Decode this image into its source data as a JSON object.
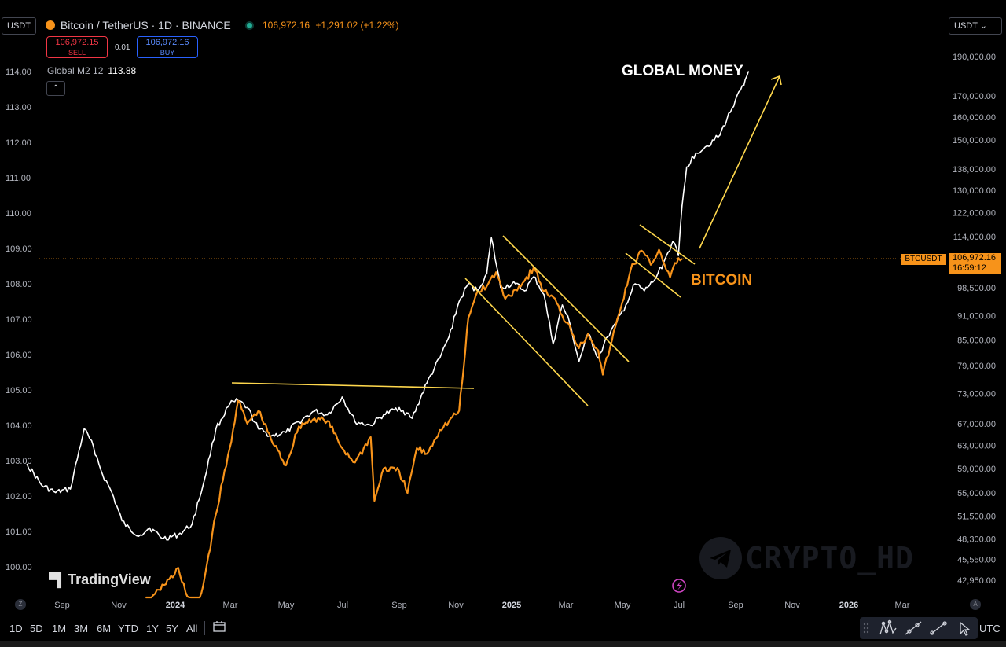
{
  "header": {
    "currency_left": "USDT",
    "currency_right": "USDT ⌄",
    "symbol_title": "Bitcoin / TetherUS · 1D · BINANCE",
    "last_price": "106,972.16",
    "change": "+1,291.02 (+1.22%)",
    "sell_price": "106,972.15",
    "sell_label": "SELL",
    "buy_price": "106,972.16",
    "buy_label": "BUY",
    "spread": "0.01",
    "indicator_name": "Global M2 12",
    "indicator_value": "113.88",
    "collapse_glyph": "⌃"
  },
  "price_tag": {
    "label": "BTCUSDT",
    "price": "106,972.16",
    "countdown": "16:59:12"
  },
  "branding": {
    "tradingview": "TradingView",
    "watermark": "CRYPTO_HD"
  },
  "bottom_toolbar": {
    "timeframes": [
      "1D",
      "5D",
      "1M",
      "3M",
      "6M",
      "YTD",
      "1Y",
      "5Y",
      "All"
    ],
    "timezone": "UTC",
    "z_button": "Z",
    "a_button": "A"
  },
  "colors": {
    "background": "#000000",
    "bitcoin": "#f7931a",
    "global_money": "#ffffff",
    "annotation": "#ffd84d"
  },
  "chart_data": {
    "type": "line",
    "annotations": [
      "GLOBAL MONEY",
      "BITCOIN"
    ],
    "left_axis": {
      "ticks": [
        "100.00",
        "101.00",
        "102.00",
        "103.00",
        "104.00",
        "105.00",
        "106.00",
        "107.00",
        "108.00",
        "109.00",
        "110.00",
        "111.00",
        "112.00",
        "113.00",
        "114.00"
      ],
      "range": [
        99.6,
        114.9
      ]
    },
    "right_axis": {
      "scale": "log",
      "ticks": [
        "42,950.00",
        "45,550.00",
        "48,300.00",
        "51,500.00",
        "55,000.00",
        "59,000.00",
        "63,000.00",
        "67,000.00",
        "73,000.00",
        "79,000.00",
        "85,000.00",
        "91,000.00",
        "98,500.00",
        "106,000.00",
        "114,000.00",
        "122,000.00",
        "130,000.00",
        "138,000.00",
        "150,000.00",
        "160,000.00",
        "170,000.00",
        "190,000.00"
      ]
    },
    "x_axis": {
      "ticks": [
        "Sep",
        "Nov",
        "2024",
        "Mar",
        "May",
        "Jul",
        "Sep",
        "Nov",
        "2025",
        "Mar",
        "May",
        "Jul",
        "Sep",
        "Nov",
        "2026",
        "Mar"
      ]
    },
    "series": [
      {
        "name": "Global M2 12",
        "color": "#ffffff",
        "axis": "left",
        "x": [
          "2023-07-25",
          "2023-08-10",
          "2023-08-25",
          "2023-09-10",
          "2023-09-25",
          "2023-10-05",
          "2023-10-15",
          "2023-10-25",
          "2023-11-05",
          "2023-11-15",
          "2023-11-25",
          "2023-12-05",
          "2023-12-20",
          "2024-01-05",
          "2024-01-20",
          "2024-02-01",
          "2024-02-15",
          "2024-03-01",
          "2024-03-10",
          "2024-03-20",
          "2024-04-01",
          "2024-04-15",
          "2024-05-01",
          "2024-05-15",
          "2024-06-01",
          "2024-06-15",
          "2024-07-01",
          "2024-07-15",
          "2024-08-01",
          "2024-08-15",
          "2024-09-01",
          "2024-09-15",
          "2024-10-01",
          "2024-10-15",
          "2024-10-25",
          "2024-11-05",
          "2024-11-15",
          "2024-11-25",
          "2024-12-05",
          "2024-12-10",
          "2024-12-20",
          "2025-01-05",
          "2025-01-15",
          "2025-01-25",
          "2025-02-05",
          "2025-02-15",
          "2025-02-25",
          "2025-03-05",
          "2025-03-15",
          "2025-03-25",
          "2025-04-05",
          "2025-04-15",
          "2025-04-25",
          "2025-05-05",
          "2025-05-15",
          "2025-05-25",
          "2025-06-05",
          "2025-06-15",
          "2025-06-20",
          "2025-06-25",
          "2025-07-01",
          "2025-07-05",
          "2025-07-10",
          "2025-07-20",
          "2025-08-01",
          "2025-08-15",
          "2025-09-01",
          "2025-09-10",
          "2025-09-15"
        ],
        "values": [
          102.9,
          102.3,
          102.1,
          102.2,
          103.9,
          103.4,
          102.6,
          102.1,
          101.3,
          101.0,
          100.9,
          101.1,
          100.8,
          100.9,
          101.2,
          102.3,
          103.9,
          104.6,
          104.7,
          104.5,
          103.9,
          103.7,
          103.8,
          104.1,
          104.4,
          104.3,
          104.8,
          104.1,
          104.0,
          104.3,
          104.5,
          104.2,
          105.2,
          105.9,
          106.5,
          107.5,
          108.0,
          107.8,
          108.3,
          109.3,
          107.9,
          108.0,
          107.8,
          108.2,
          107.7,
          106.3,
          107.4,
          106.9,
          105.8,
          106.6,
          105.9,
          106.5,
          106.9,
          107.4,
          108.0,
          107.8,
          108.1,
          108.6,
          108.9,
          109.2,
          108.8,
          110.2,
          111.3,
          111.7,
          111.9,
          112.2,
          113.2,
          113.6,
          114.0
        ]
      },
      {
        "name": "BITCOIN",
        "color": "#f7931a",
        "axis": "right",
        "x": [
          "2023-12-01",
          "2023-12-15",
          "2024-01-01",
          "2024-01-05",
          "2024-01-15",
          "2024-01-25",
          "2024-02-01",
          "2024-02-15",
          "2024-03-01",
          "2024-03-10",
          "2024-03-20",
          "2024-04-01",
          "2024-04-15",
          "2024-05-01",
          "2024-05-15",
          "2024-06-01",
          "2024-06-15",
          "2024-07-01",
          "2024-07-15",
          "2024-08-01",
          "2024-08-05",
          "2024-08-15",
          "2024-09-01",
          "2024-09-10",
          "2024-09-20",
          "2024-10-01",
          "2024-10-15",
          "2024-10-25",
          "2024-11-05",
          "2024-11-10",
          "2024-11-15",
          "2024-11-25",
          "2024-12-05",
          "2024-12-15",
          "2024-12-25",
          "2025-01-05",
          "2025-01-15",
          "2025-01-25",
          "2025-02-05",
          "2025-02-15",
          "2025-02-25",
          "2025-03-05",
          "2025-03-15",
          "2025-03-25",
          "2025-04-05",
          "2025-04-10",
          "2025-04-20",
          "2025-05-01",
          "2025-05-10",
          "2025-05-22",
          "2025-06-01",
          "2025-06-10",
          "2025-06-22",
          "2025-07-01",
          "2025-07-05"
        ],
        "values": [
          39500,
          41800,
          43600,
          44500,
          41000,
          39800,
          42200,
          51800,
          62500,
          71500,
          67000,
          69500,
          64000,
          59500,
          66500,
          68000,
          67500,
          62500,
          60000,
          64500,
          53800,
          59000,
          58500,
          55000,
          62500,
          61500,
          65800,
          67500,
          69500,
          78500,
          90500,
          97500,
          99000,
          103000,
          95500,
          98000,
          100500,
          104500,
          97500,
          96000,
          91000,
          88500,
          83000,
          86500,
          82500,
          77000,
          85000,
          94500,
          103500,
          109500,
          105200,
          109800,
          101500,
          107200,
          106972
        ]
      }
    ]
  }
}
